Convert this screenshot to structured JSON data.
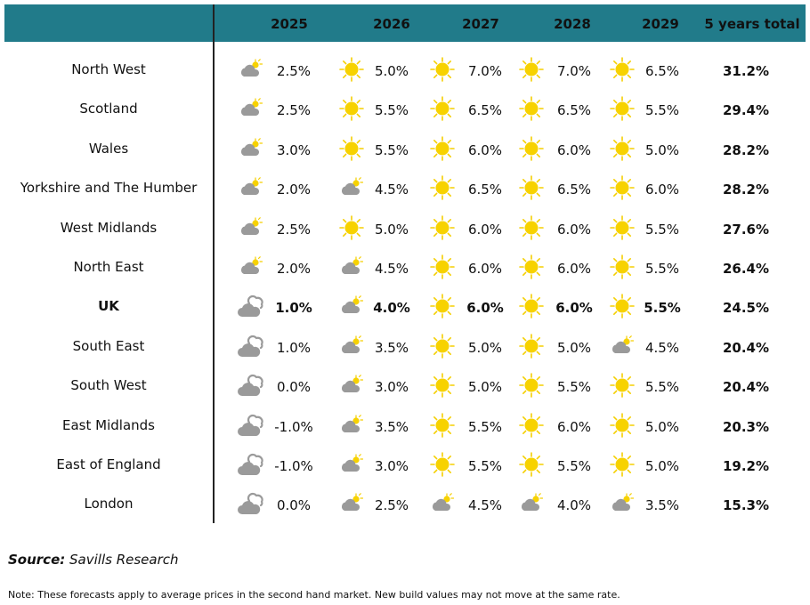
{
  "header": {
    "columns": [
      "2025",
      "2026",
      "2027",
      "2028",
      "2029",
      "5 years total"
    ]
  },
  "table": {
    "rows": [
      {
        "region": "North West",
        "bold": false,
        "cells": [
          {
            "value": "2.5%",
            "icon": "sun-cloud"
          },
          {
            "value": "5.0%",
            "icon": "sun"
          },
          {
            "value": "7.0%",
            "icon": "sun"
          },
          {
            "value": "7.0%",
            "icon": "sun"
          },
          {
            "value": "6.5%",
            "icon": "sun"
          }
        ],
        "total": "31.2%"
      },
      {
        "region": "Scotland",
        "bold": false,
        "cells": [
          {
            "value": "2.5%",
            "icon": "sun-cloud"
          },
          {
            "value": "5.5%",
            "icon": "sun"
          },
          {
            "value": "6.5%",
            "icon": "sun"
          },
          {
            "value": "6.5%",
            "icon": "sun"
          },
          {
            "value": "5.5%",
            "icon": "sun"
          }
        ],
        "total": "29.4%"
      },
      {
        "region": "Wales",
        "bold": false,
        "cells": [
          {
            "value": "3.0%",
            "icon": "sun-cloud"
          },
          {
            "value": "5.5%",
            "icon": "sun"
          },
          {
            "value": "6.0%",
            "icon": "sun"
          },
          {
            "value": "6.0%",
            "icon": "sun"
          },
          {
            "value": "5.0%",
            "icon": "sun"
          }
        ],
        "total": "28.2%"
      },
      {
        "region": "Yorkshire and The Humber",
        "bold": false,
        "cells": [
          {
            "value": "2.0%",
            "icon": "sun-cloud"
          },
          {
            "value": "4.5%",
            "icon": "sun-cloud"
          },
          {
            "value": "6.5%",
            "icon": "sun"
          },
          {
            "value": "6.5%",
            "icon": "sun"
          },
          {
            "value": "6.0%",
            "icon": "sun"
          }
        ],
        "total": "28.2%"
      },
      {
        "region": "West Midlands",
        "bold": false,
        "cells": [
          {
            "value": "2.5%",
            "icon": "sun-cloud"
          },
          {
            "value": "5.0%",
            "icon": "sun"
          },
          {
            "value": "6.0%",
            "icon": "sun"
          },
          {
            "value": "6.0%",
            "icon": "sun"
          },
          {
            "value": "5.5%",
            "icon": "sun"
          }
        ],
        "total": "27.6%"
      },
      {
        "region": "North East",
        "bold": false,
        "cells": [
          {
            "value": "2.0%",
            "icon": "sun-cloud"
          },
          {
            "value": "4.5%",
            "icon": "sun-cloud"
          },
          {
            "value": "6.0%",
            "icon": "sun"
          },
          {
            "value": "6.0%",
            "icon": "sun"
          },
          {
            "value": "5.5%",
            "icon": "sun"
          }
        ],
        "total": "26.4%"
      },
      {
        "region": "UK",
        "bold": true,
        "cells": [
          {
            "value": "1.0%",
            "icon": "cloud"
          },
          {
            "value": "4.0%",
            "icon": "sun-cloud"
          },
          {
            "value": "6.0%",
            "icon": "sun"
          },
          {
            "value": "6.0%",
            "icon": "sun"
          },
          {
            "value": "5.5%",
            "icon": "sun"
          }
        ],
        "total": "24.5%"
      },
      {
        "region": "South East",
        "bold": false,
        "cells": [
          {
            "value": "1.0%",
            "icon": "cloud"
          },
          {
            "value": "3.5%",
            "icon": "sun-cloud"
          },
          {
            "value": "5.0%",
            "icon": "sun"
          },
          {
            "value": "5.0%",
            "icon": "sun"
          },
          {
            "value": "4.5%",
            "icon": "sun-cloud"
          }
        ],
        "total": "20.4%"
      },
      {
        "region": "South West",
        "bold": false,
        "cells": [
          {
            "value": "0.0%",
            "icon": "cloud"
          },
          {
            "value": "3.0%",
            "icon": "sun-cloud"
          },
          {
            "value": "5.0%",
            "icon": "sun"
          },
          {
            "value": "5.5%",
            "icon": "sun"
          },
          {
            "value": "5.5%",
            "icon": "sun"
          }
        ],
        "total": "20.4%"
      },
      {
        "region": "East Midlands",
        "bold": false,
        "cells": [
          {
            "value": "-1.0%",
            "icon": "cloud"
          },
          {
            "value": "3.5%",
            "icon": "sun-cloud"
          },
          {
            "value": "5.5%",
            "icon": "sun"
          },
          {
            "value": "6.0%",
            "icon": "sun"
          },
          {
            "value": "5.0%",
            "icon": "sun"
          }
        ],
        "total": "20.3%"
      },
      {
        "region": "East of England",
        "bold": false,
        "cells": [
          {
            "value": "-1.0%",
            "icon": "cloud"
          },
          {
            "value": "3.0%",
            "icon": "sun-cloud"
          },
          {
            "value": "5.5%",
            "icon": "sun"
          },
          {
            "value": "5.5%",
            "icon": "sun"
          },
          {
            "value": "5.0%",
            "icon": "sun"
          }
        ],
        "total": "19.2%"
      },
      {
        "region": "London",
        "bold": false,
        "cells": [
          {
            "value": "0.0%",
            "icon": "cloud"
          },
          {
            "value": "2.5%",
            "icon": "sun-cloud"
          },
          {
            "value": "4.5%",
            "icon": "sun-cloud"
          },
          {
            "value": "4.0%",
            "icon": "sun-cloud"
          },
          {
            "value": "3.5%",
            "icon": "sun-cloud"
          }
        ],
        "total": "15.3%"
      }
    ]
  },
  "footer": {
    "source_label": "Source:",
    "source": "Savills Research",
    "note": "Note: These forecasts apply to average prices in the second hand market. New build values may not move at the same rate."
  }
}
